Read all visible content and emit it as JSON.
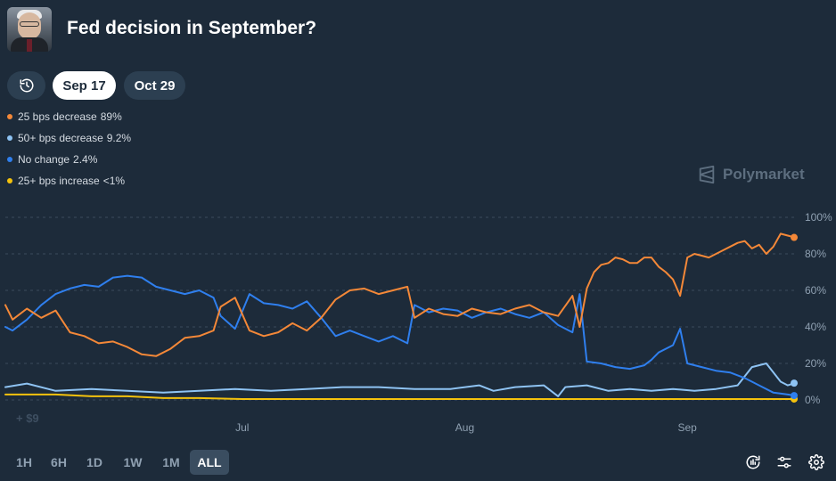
{
  "header": {
    "title": "Fed decision in September?"
  },
  "date_tabs": [
    {
      "label": "Sep 17",
      "selected": true
    },
    {
      "label": "Oct 29",
      "selected": false
    }
  ],
  "legend": [
    {
      "label": "25 bps decrease",
      "value": "89%",
      "color": "#f48838"
    },
    {
      "label": "50+ bps decrease",
      "value": "9.2%",
      "color": "#8ec3f3"
    },
    {
      "label": "No change",
      "value": "2.4%",
      "color": "#2f7fee"
    },
    {
      "label": "25+ bps increase",
      "value": "<1%",
      "color": "#f4c20d"
    }
  ],
  "watermark": "Polymarket",
  "volume_label": "+ $9",
  "time_ranges": [
    "1H",
    "6H",
    "1D",
    "1W",
    "1M",
    "ALL"
  ],
  "active_range": "ALL",
  "icons": {
    "history": "history-icon",
    "logo": "polymarket-logo-icon",
    "tools": [
      "replay-icon",
      "sliders-icon",
      "gear-icon"
    ]
  },
  "chart_data": {
    "type": "line",
    "x_domain": [
      "2025-05-29",
      "2025-09-16"
    ],
    "x_ticks": [
      {
        "date": "2025-07-01",
        "label": "Jul"
      },
      {
        "date": "2025-08-01",
        "label": "Aug"
      },
      {
        "date": "2025-09-01",
        "label": "Sep"
      }
    ],
    "y_ticks": [
      0,
      20,
      40,
      60,
      80,
      100
    ],
    "y_tick_suffix": "%",
    "ylim": [
      0,
      100
    ],
    "grid": true,
    "series": [
      {
        "name": "25 bps decrease",
        "color": "#f48838",
        "points": [
          [
            "2025-05-29",
            52
          ],
          [
            "2025-05-30",
            44
          ],
          [
            "2025-06-01",
            50
          ],
          [
            "2025-06-03",
            45
          ],
          [
            "2025-06-05",
            49
          ],
          [
            "2025-06-07",
            37
          ],
          [
            "2025-06-09",
            35
          ],
          [
            "2025-06-11",
            31
          ],
          [
            "2025-06-13",
            32
          ],
          [
            "2025-06-15",
            29
          ],
          [
            "2025-06-17",
            25
          ],
          [
            "2025-06-19",
            24
          ],
          [
            "2025-06-21",
            28
          ],
          [
            "2025-06-23",
            34
          ],
          [
            "2025-06-25",
            35
          ],
          [
            "2025-06-27",
            38
          ],
          [
            "2025-06-28",
            51
          ],
          [
            "2025-06-30",
            56
          ],
          [
            "2025-07-02",
            38
          ],
          [
            "2025-07-04",
            35
          ],
          [
            "2025-07-06",
            37
          ],
          [
            "2025-07-08",
            42
          ],
          [
            "2025-07-10",
            38
          ],
          [
            "2025-07-12",
            45
          ],
          [
            "2025-07-14",
            55
          ],
          [
            "2025-07-16",
            60
          ],
          [
            "2025-07-18",
            61
          ],
          [
            "2025-07-20",
            58
          ],
          [
            "2025-07-22",
            60
          ],
          [
            "2025-07-24",
            62
          ],
          [
            "2025-07-25",
            45
          ],
          [
            "2025-07-27",
            50
          ],
          [
            "2025-07-29",
            47
          ],
          [
            "2025-07-31",
            46
          ],
          [
            "2025-08-02",
            50
          ],
          [
            "2025-08-04",
            48
          ],
          [
            "2025-08-06",
            47
          ],
          [
            "2025-08-08",
            50
          ],
          [
            "2025-08-10",
            52
          ],
          [
            "2025-08-12",
            48
          ],
          [
            "2025-08-14",
            46
          ],
          [
            "2025-08-16",
            57
          ],
          [
            "2025-08-17",
            40
          ],
          [
            "2025-08-18",
            61
          ],
          [
            "2025-08-19",
            70
          ],
          [
            "2025-08-20",
            74
          ],
          [
            "2025-08-21",
            75
          ],
          [
            "2025-08-22",
            78
          ],
          [
            "2025-08-23",
            77
          ],
          [
            "2025-08-24",
            75
          ],
          [
            "2025-08-25",
            75
          ],
          [
            "2025-08-26",
            78
          ],
          [
            "2025-08-27",
            78
          ],
          [
            "2025-08-28",
            73
          ],
          [
            "2025-08-29",
            70
          ],
          [
            "2025-08-30",
            66
          ],
          [
            "2025-08-31",
            57
          ],
          [
            "2025-09-01",
            78
          ],
          [
            "2025-09-02",
            80
          ],
          [
            "2025-09-03",
            79
          ],
          [
            "2025-09-04",
            78
          ],
          [
            "2025-09-05",
            80
          ],
          [
            "2025-09-06",
            82
          ],
          [
            "2025-09-07",
            84
          ],
          [
            "2025-09-08",
            86
          ],
          [
            "2025-09-09",
            87
          ],
          [
            "2025-09-10",
            83
          ],
          [
            "2025-09-11",
            85
          ],
          [
            "2025-09-12",
            80
          ],
          [
            "2025-09-13",
            84
          ],
          [
            "2025-09-14",
            91
          ],
          [
            "2025-09-15",
            90
          ],
          [
            "2025-09-16",
            89
          ]
        ]
      },
      {
        "name": "50+ bps decrease",
        "color": "#8ec3f3",
        "points": [
          [
            "2025-05-29",
            7
          ],
          [
            "2025-06-01",
            9
          ],
          [
            "2025-06-05",
            5
          ],
          [
            "2025-06-10",
            6
          ],
          [
            "2025-06-15",
            5
          ],
          [
            "2025-06-20",
            4
          ],
          [
            "2025-06-25",
            5
          ],
          [
            "2025-06-30",
            6
          ],
          [
            "2025-07-05",
            5
          ],
          [
            "2025-07-10",
            6
          ],
          [
            "2025-07-15",
            7
          ],
          [
            "2025-07-20",
            7
          ],
          [
            "2025-07-25",
            6
          ],
          [
            "2025-07-30",
            6
          ],
          [
            "2025-08-03",
            8
          ],
          [
            "2025-08-05",
            5
          ],
          [
            "2025-08-08",
            7
          ],
          [
            "2025-08-12",
            8
          ],
          [
            "2025-08-14",
            2
          ],
          [
            "2025-08-15",
            7
          ],
          [
            "2025-08-18",
            8
          ],
          [
            "2025-08-21",
            5
          ],
          [
            "2025-08-24",
            6
          ],
          [
            "2025-08-27",
            5
          ],
          [
            "2025-08-30",
            6
          ],
          [
            "2025-09-02",
            5
          ],
          [
            "2025-09-05",
            6
          ],
          [
            "2025-09-08",
            8
          ],
          [
            "2025-09-10",
            18
          ],
          [
            "2025-09-12",
            20
          ],
          [
            "2025-09-14",
            10
          ],
          [
            "2025-09-15",
            8
          ],
          [
            "2025-09-16",
            9.2
          ]
        ]
      },
      {
        "name": "No change",
        "color": "#2f7fee",
        "points": [
          [
            "2025-05-29",
            40
          ],
          [
            "2025-05-30",
            38
          ],
          [
            "2025-06-01",
            44
          ],
          [
            "2025-06-03",
            52
          ],
          [
            "2025-06-05",
            58
          ],
          [
            "2025-06-07",
            61
          ],
          [
            "2025-06-09",
            63
          ],
          [
            "2025-06-11",
            62
          ],
          [
            "2025-06-13",
            67
          ],
          [
            "2025-06-15",
            68
          ],
          [
            "2025-06-17",
            67
          ],
          [
            "2025-06-19",
            62
          ],
          [
            "2025-06-21",
            60
          ],
          [
            "2025-06-23",
            58
          ],
          [
            "2025-06-25",
            60
          ],
          [
            "2025-06-27",
            56
          ],
          [
            "2025-06-28",
            46
          ],
          [
            "2025-06-30",
            39
          ],
          [
            "2025-07-02",
            58
          ],
          [
            "2025-07-04",
            53
          ],
          [
            "2025-07-06",
            52
          ],
          [
            "2025-07-08",
            50
          ],
          [
            "2025-07-10",
            54
          ],
          [
            "2025-07-12",
            45
          ],
          [
            "2025-07-14",
            35
          ],
          [
            "2025-07-16",
            38
          ],
          [
            "2025-07-18",
            35
          ],
          [
            "2025-07-20",
            32
          ],
          [
            "2025-07-22",
            35
          ],
          [
            "2025-07-24",
            31
          ],
          [
            "2025-07-25",
            52
          ],
          [
            "2025-07-27",
            48
          ],
          [
            "2025-07-29",
            50
          ],
          [
            "2025-07-31",
            49
          ],
          [
            "2025-08-02",
            45
          ],
          [
            "2025-08-04",
            48
          ],
          [
            "2025-08-06",
            50
          ],
          [
            "2025-08-08",
            47
          ],
          [
            "2025-08-10",
            45
          ],
          [
            "2025-08-12",
            48
          ],
          [
            "2025-08-14",
            41
          ],
          [
            "2025-08-16",
            37
          ],
          [
            "2025-08-17",
            58
          ],
          [
            "2025-08-18",
            21
          ],
          [
            "2025-08-20",
            20
          ],
          [
            "2025-08-22",
            18
          ],
          [
            "2025-08-24",
            17
          ],
          [
            "2025-08-26",
            19
          ],
          [
            "2025-08-27",
            22
          ],
          [
            "2025-08-28",
            26
          ],
          [
            "2025-08-30",
            30
          ],
          [
            "2025-08-31",
            39
          ],
          [
            "2025-09-01",
            20
          ],
          [
            "2025-09-03",
            18
          ],
          [
            "2025-09-05",
            16
          ],
          [
            "2025-09-07",
            15
          ],
          [
            "2025-09-09",
            12
          ],
          [
            "2025-09-11",
            8
          ],
          [
            "2025-09-13",
            4
          ],
          [
            "2025-09-15",
            3
          ],
          [
            "2025-09-16",
            2.4
          ]
        ]
      },
      {
        "name": "25+ bps increase",
        "color": "#f4c20d",
        "points": [
          [
            "2025-05-29",
            3
          ],
          [
            "2025-06-05",
            3
          ],
          [
            "2025-06-10",
            2
          ],
          [
            "2025-06-15",
            2
          ],
          [
            "2025-06-20",
            1
          ],
          [
            "2025-06-25",
            1
          ],
          [
            "2025-07-01",
            0.5
          ],
          [
            "2025-07-15",
            0.5
          ],
          [
            "2025-08-01",
            0.5
          ],
          [
            "2025-08-15",
            0.5
          ],
          [
            "2025-09-01",
            0.5
          ],
          [
            "2025-09-16",
            0.5
          ]
        ]
      }
    ]
  }
}
